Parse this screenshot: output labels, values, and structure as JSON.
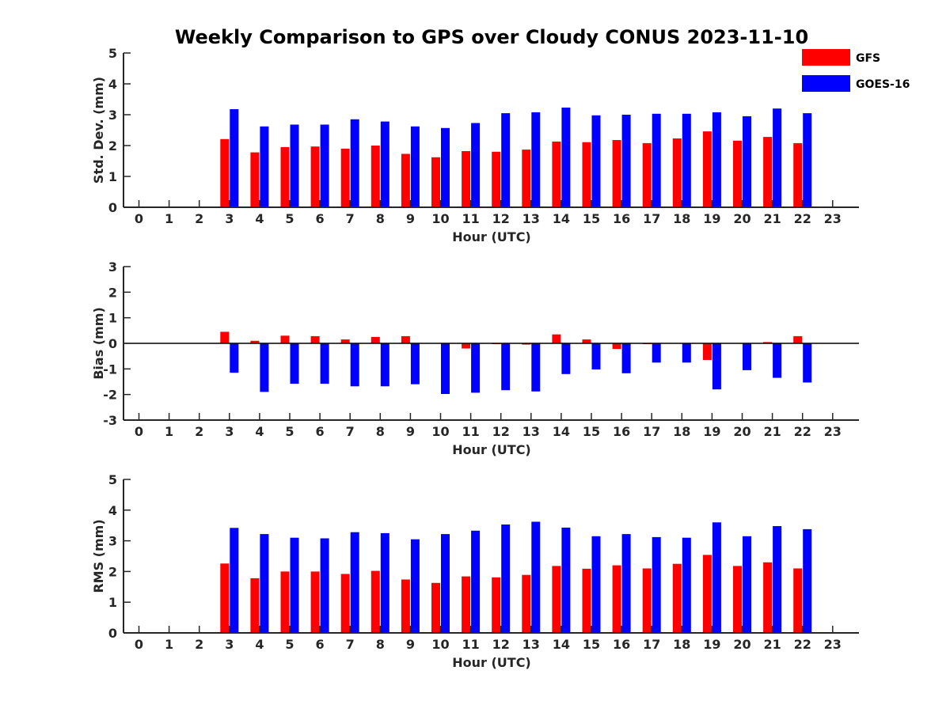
{
  "chart_data": {
    "title": "Weekly Comparison to GPS over Cloudy CONUS 2023-11-10",
    "legend": {
      "placement": "top-right",
      "entries": [
        {
          "label": "GFS",
          "color": "#ff0000"
        },
        {
          "label": "GOES-16",
          "color": "#0000ff"
        }
      ]
    },
    "panels": [
      {
        "type": "bar",
        "xlabel": "Hour (UTC)",
        "ylabel": "Std. Dev. (mm)",
        "ylim": [
          0,
          5
        ],
        "yticks": [
          "0",
          "1",
          "2",
          "3",
          "4",
          "5"
        ],
        "categories": [
          "0",
          "1",
          "2",
          "3",
          "4",
          "5",
          "6",
          "7",
          "8",
          "9",
          "10",
          "11",
          "12",
          "13",
          "14",
          "15",
          "16",
          "17",
          "18",
          "19",
          "20",
          "21",
          "22",
          "23"
        ],
        "series": [
          {
            "name": "GFS",
            "color": "#ff0000",
            "values": [
              null,
              null,
              null,
              2.21,
              1.78,
              1.95,
              1.97,
              1.9,
              2.0,
              1.73,
              1.62,
              1.82,
              1.8,
              1.87,
              2.13,
              2.11,
              2.18,
              2.08,
              2.23,
              2.46,
              2.16,
              2.28,
              2.08,
              null
            ]
          },
          {
            "name": "GOES-16",
            "color": "#0000ff",
            "values": [
              null,
              null,
              null,
              3.18,
              2.62,
              2.68,
              2.68,
              2.85,
              2.78,
              2.62,
              2.57,
              2.73,
              3.05,
              3.08,
              3.23,
              2.98,
              3.0,
              3.03,
              3.03,
              3.08,
              2.95,
              3.2,
              3.05,
              null
            ]
          }
        ]
      },
      {
        "type": "bar",
        "xlabel": "Hour (UTC)",
        "ylabel": "Bias (mm)",
        "ylim": [
          -3,
          3
        ],
        "yticks": [
          "-3",
          "-2",
          "-1",
          "0",
          "1",
          "2",
          "3"
        ],
        "zero_line": true,
        "categories": [
          "0",
          "1",
          "2",
          "3",
          "4",
          "5",
          "6",
          "7",
          "8",
          "9",
          "10",
          "11",
          "12",
          "13",
          "14",
          "15",
          "16",
          "17",
          "18",
          "19",
          "20",
          "21",
          "22",
          "23"
        ],
        "series": [
          {
            "name": "GFS",
            "color": "#ff0000",
            "values": [
              null,
              null,
              null,
              0.45,
              0.1,
              0.3,
              0.28,
              0.15,
              0.25,
              0.28,
              0.0,
              -0.2,
              -0.03,
              -0.05,
              0.35,
              0.15,
              -0.22,
              -0.03,
              0.0,
              -0.65,
              0.0,
              0.05,
              0.28,
              null
            ]
          },
          {
            "name": "GOES-16",
            "color": "#0000ff",
            "values": [
              null,
              null,
              null,
              -1.15,
              -1.9,
              -1.58,
              -1.58,
              -1.68,
              -1.68,
              -1.6,
              -1.98,
              -1.93,
              -1.83,
              -1.88,
              -1.2,
              -1.02,
              -1.17,
              -0.75,
              -0.75,
              -1.8,
              -1.05,
              -1.35,
              -1.53,
              null
            ]
          }
        ]
      },
      {
        "type": "bar",
        "xlabel": "Hour (UTC)",
        "ylabel": "RMS (mm)",
        "ylim": [
          0,
          5
        ],
        "yticks": [
          "0",
          "1",
          "2",
          "3",
          "4",
          "5"
        ],
        "categories": [
          "0",
          "1",
          "2",
          "3",
          "4",
          "5",
          "6",
          "7",
          "8",
          "9",
          "10",
          "11",
          "12",
          "13",
          "14",
          "15",
          "16",
          "17",
          "18",
          "19",
          "20",
          "21",
          "22",
          "23"
        ],
        "series": [
          {
            "name": "GFS",
            "color": "#ff0000",
            "values": [
              null,
              null,
              null,
              2.26,
              1.78,
              2.0,
              2.0,
              1.92,
              2.02,
              1.74,
              1.63,
              1.84,
              1.81,
              1.89,
              2.18,
              2.09,
              2.2,
              2.1,
              2.25,
              2.54,
              2.18,
              2.3,
              2.1,
              null
            ]
          },
          {
            "name": "GOES-16",
            "color": "#0000ff",
            "values": [
              null,
              null,
              null,
              3.42,
              3.22,
              3.1,
              3.08,
              3.28,
              3.25,
              3.05,
              3.22,
              3.33,
              3.53,
              3.62,
              3.43,
              3.15,
              3.22,
              3.12,
              3.1,
              3.6,
              3.15,
              3.48,
              3.38,
              null
            ]
          }
        ]
      }
    ]
  }
}
